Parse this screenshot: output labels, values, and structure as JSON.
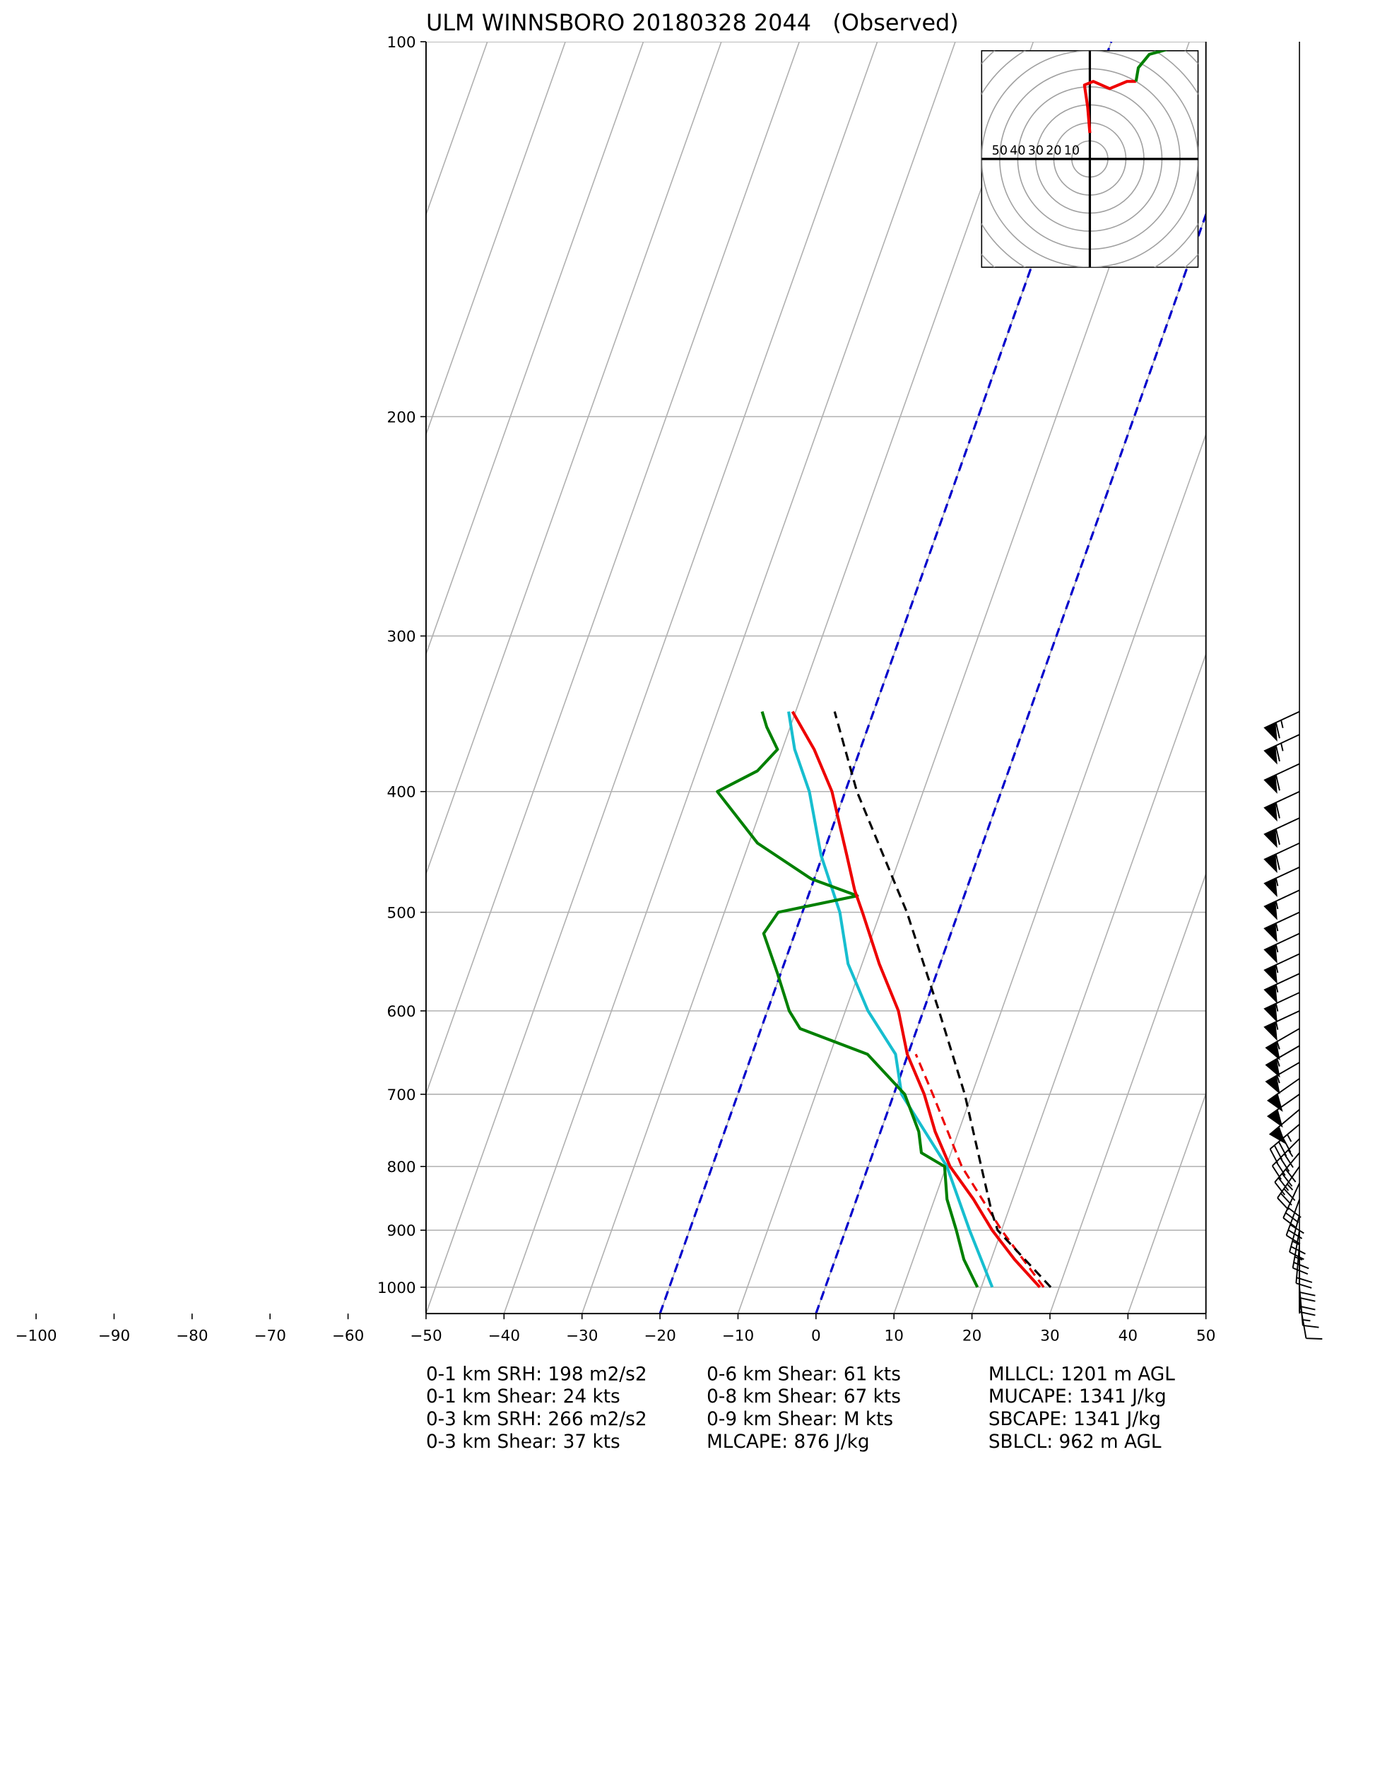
{
  "chart_data": {
    "type": "skewt",
    "title": "ULM WINNSBORO 20180328 2044   (Observed)",
    "xlim": [
      -50,
      50
    ],
    "ylim": [
      1050,
      100
    ],
    "log_y": true,
    "grid": true,
    "xticks": [
      {
        "value": -100,
        "label": "−100"
      },
      {
        "value": -90,
        "label": "−90"
      },
      {
        "value": -80,
        "label": "−80"
      },
      {
        "value": -70,
        "label": "−70"
      },
      {
        "value": -60,
        "label": "−60"
      },
      {
        "value": -50,
        "label": "−50"
      },
      {
        "value": -40,
        "label": "−40"
      },
      {
        "value": -30,
        "label": "−30"
      },
      {
        "value": -20,
        "label": "−20"
      },
      {
        "value": -10,
        "label": "−10"
      },
      0,
      10,
      20,
      30,
      40,
      50
    ],
    "yticks": [
      100,
      200,
      300,
      400,
      500,
      600,
      700,
      800,
      900,
      1000
    ],
    "isotherms": {
      "color": "#0000cc",
      "values": [
        -20,
        0
      ]
    },
    "profiles": [
      {
        "color": "#17becf",
        "style": "solid",
        "pressure": [
          1000,
          900,
          800,
          700,
          650,
          600,
          550,
          500,
          450,
          400,
          370,
          345
        ],
        "temperature": [
          21.4,
          15.9,
          10.1,
          1,
          -1.6,
          -7.1,
          -11.8,
          -15.2,
          -20.2,
          -24.6,
          -28.4,
          -30.9
        ]
      },
      {
        "color": "#008000",
        "style": "solid",
        "pressure": [
          1000,
          950,
          900,
          850,
          800,
          780,
          750,
          700,
          650,
          620,
          600,
          560,
          520,
          500,
          485,
          470,
          440,
          400,
          385,
          370,
          355,
          345
        ],
        "temperature": [
          19.5,
          16.5,
          14.2,
          11.6,
          9.8,
          6.2,
          4.9,
          1.4,
          -5.2,
          -15,
          -17.2,
          -20.4,
          -24,
          -23.1,
          -13.7,
          -20.4,
          -28.9,
          -36.4,
          -32.2,
          -30.6,
          -33,
          -34.3
        ]
      },
      {
        "color": "#ee0000",
        "style": "solid",
        "pressure": [
          1000,
          950,
          900,
          850,
          800,
          750,
          700,
          650,
          600,
          550,
          500,
          480,
          450,
          400,
          370,
          345
        ],
        "temperature": [
          27.5,
          23,
          18.8,
          15,
          10.5,
          7,
          3.9,
          -0.1,
          -3.2,
          -7.8,
          -12.3,
          -14.3,
          -16.9,
          -21.7,
          -25.9,
          -30.4
        ]
      },
      {
        "color": "#ee0000",
        "style": "dashed",
        "pressure": [
          1000,
          900,
          800,
          700,
          650
        ],
        "temperature": [
          28,
          20,
          12,
          5,
          1
        ]
      },
      {
        "color": "#000000",
        "style": "dashed",
        "pressure": [
          1000,
          900,
          870,
          800,
          700,
          600,
          500,
          400,
          345
        ],
        "temperature": [
          28.9,
          19.5,
          17.9,
          14.5,
          9.1,
          2,
          -6.6,
          -18.5,
          -25
        ]
      }
    ],
    "barbs": {
      "color": "#000000",
      "pressure": [
        345,
        360,
        380,
        400,
        420,
        440,
        460,
        480,
        500,
        520,
        540,
        560,
        580,
        600,
        620,
        640,
        660,
        680,
        700,
        720,
        740,
        760,
        780,
        800,
        825,
        850,
        875,
        900,
        925,
        950,
        975,
        1000,
        1025
      ],
      "speed": [
        65,
        65,
        60,
        60,
        60,
        60,
        55,
        55,
        55,
        55,
        55,
        55,
        55,
        55,
        55,
        55,
        55,
        50,
        50,
        50,
        45,
        45,
        40,
        35,
        30,
        30,
        25,
        25,
        20,
        20,
        20,
        15,
        10
      ],
      "direction": [
        245,
        245,
        245,
        245,
        245,
        245,
        245,
        245,
        245,
        245,
        245,
        245,
        245,
        245,
        240,
        240,
        240,
        235,
        235,
        230,
        230,
        225,
        220,
        215,
        205,
        200,
        195,
        190,
        185,
        180,
        180,
        175,
        170
      ]
    },
    "hodograph": {
      "ulim": [
        -60,
        60
      ],
      "vlim": [
        -60,
        60
      ],
      "ring_ticks": [
        10,
        20,
        30,
        40,
        50
      ],
      "series": [
        {
          "color": "#ee0000",
          "u": [
            0,
            -1.2,
            -3,
            1.9,
            11,
            20.6,
            25.6
          ],
          "v": [
            14.4,
            28.8,
            41,
            43,
            39,
            43,
            43
          ]
        },
        {
          "color": "#008000",
          "u": [
            25.6,
            26.9,
            33,
            42.5
          ],
          "v": [
            43,
            50.6,
            58,
            60.6
          ]
        }
      ]
    },
    "stats": [
      [
        "0-1 km SRH: 198 m2/s2",
        "0-1 km Shear: 24 kts",
        "0-3 km SRH: 266 m2/s2",
        "0-3 km Shear: 37 kts"
      ],
      [
        "0-6 km Shear: 61 kts",
        "0-8 km Shear: 67 kts",
        "0-9 km Shear: M kts",
        "MLCAPE: 876 J/kg"
      ],
      [
        "MLLCL: 1201 m AGL",
        "MUCAPE: 1341 J/kg",
        "SBCAPE: 1341 J/kg",
        "SBLCL: 962 m AGL"
      ]
    ]
  }
}
